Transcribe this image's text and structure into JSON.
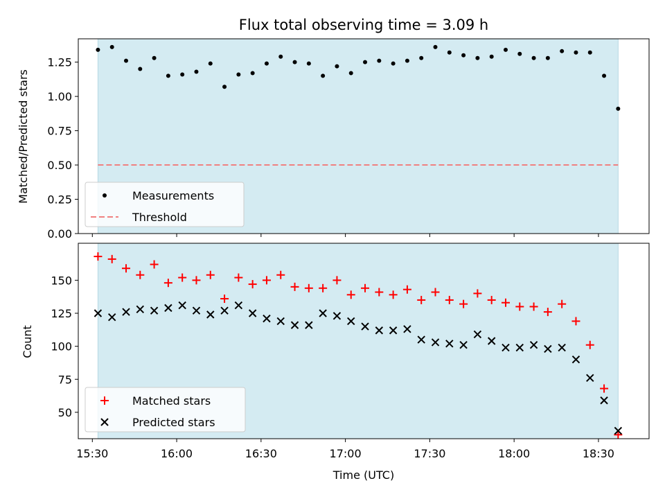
{
  "chart_data": [
    {
      "type": "scatter",
      "title": "Flux total observing time = 3.09 h",
      "ylabel": "Matched/Predicted stars",
      "xlabel": "",
      "ylim": [
        0.0,
        1.42
      ],
      "yticks": [
        "0.00",
        "0.25",
        "0.50",
        "0.75",
        "1.00",
        "1.25"
      ],
      "shaded_span": [
        "15:32",
        "18:37"
      ],
      "legend_position": "lower-left",
      "series": [
        {
          "name": "Measurements",
          "marker": "dot",
          "color": "#000000",
          "x": [
            "15:32",
            "15:37",
            "15:42",
            "15:47",
            "15:52",
            "15:57",
            "16:02",
            "16:07",
            "16:12",
            "16:17",
            "16:22",
            "16:27",
            "16:32",
            "16:37",
            "16:42",
            "16:47",
            "16:52",
            "16:57",
            "17:02",
            "17:07",
            "17:12",
            "17:17",
            "17:22",
            "17:27",
            "17:32",
            "17:37",
            "17:42",
            "17:47",
            "17:52",
            "17:57",
            "18:02",
            "18:07",
            "18:12",
            "18:17",
            "18:22",
            "18:27",
            "18:32",
            "18:37"
          ],
          "y": [
            1.34,
            1.36,
            1.26,
            1.2,
            1.28,
            1.15,
            1.16,
            1.18,
            1.24,
            1.07,
            1.16,
            1.17,
            1.24,
            1.29,
            1.25,
            1.24,
            1.15,
            1.22,
            1.17,
            1.25,
            1.26,
            1.24,
            1.26,
            1.28,
            1.36,
            1.32,
            1.3,
            1.28,
            1.29,
            1.34,
            1.31,
            1.28,
            1.28,
            1.33,
            1.32,
            1.32,
            1.15,
            0.91
          ]
        },
        {
          "name": "Threshold",
          "marker": "dashed-line",
          "color": "#f08080",
          "x": [
            "15:32",
            "18:37"
          ],
          "y": [
            0.5,
            0.5
          ]
        }
      ]
    },
    {
      "type": "scatter",
      "xlabel": "Time (UTC)",
      "ylabel": "Count",
      "ylim": [
        30,
        178
      ],
      "yticks": [
        "50",
        "75",
        "100",
        "125",
        "150"
      ],
      "xticks": [
        "15:30",
        "16:00",
        "16:30",
        "17:00",
        "17:30",
        "18:00",
        "18:30"
      ],
      "shaded_span": [
        "15:32",
        "18:37"
      ],
      "legend_position": "lower-left",
      "series": [
        {
          "name": "Matched stars",
          "marker": "plus",
          "color": "#ff0000",
          "x": [
            "15:32",
            "15:37",
            "15:42",
            "15:47",
            "15:52",
            "15:57",
            "16:02",
            "16:07",
            "16:12",
            "16:17",
            "16:22",
            "16:27",
            "16:32",
            "16:37",
            "16:42",
            "16:47",
            "16:52",
            "16:57",
            "17:02",
            "17:07",
            "17:12",
            "17:17",
            "17:22",
            "17:27",
            "17:32",
            "17:37",
            "17:42",
            "17:47",
            "17:52",
            "17:57",
            "18:02",
            "18:07",
            "18:12",
            "18:17",
            "18:22",
            "18:27",
            "18:32",
            "18:37"
          ],
          "y": [
            168,
            166,
            159,
            154,
            162,
            148,
            152,
            150,
            154,
            136,
            152,
            147,
            150,
            154,
            145,
            144,
            144,
            150,
            139,
            144,
            141,
            139,
            143,
            135,
            141,
            135,
            132,
            140,
            135,
            133,
            130,
            130,
            126,
            132,
            119,
            101,
            68,
            33
          ]
        },
        {
          "name": "Predicted stars",
          "marker": "x",
          "color": "#000000",
          "x": [
            "15:32",
            "15:37",
            "15:42",
            "15:47",
            "15:52",
            "15:57",
            "16:02",
            "16:07",
            "16:12",
            "16:17",
            "16:22",
            "16:27",
            "16:32",
            "16:37",
            "16:42",
            "16:47",
            "16:52",
            "16:57",
            "17:02",
            "17:07",
            "17:12",
            "17:17",
            "17:22",
            "17:27",
            "17:32",
            "17:37",
            "17:42",
            "17:47",
            "17:52",
            "17:57",
            "18:02",
            "18:07",
            "18:12",
            "18:17",
            "18:22",
            "18:27",
            "18:32",
            "18:37"
          ],
          "y": [
            125,
            122,
            126,
            128,
            127,
            129,
            131,
            127,
            124,
            127,
            131,
            125,
            121,
            119,
            116,
            116,
            125,
            123,
            119,
            115,
            112,
            112,
            113,
            105,
            103,
            102,
            101,
            109,
            104,
            99,
            99,
            101,
            98,
            99,
            90,
            76,
            59,
            36
          ]
        }
      ]
    }
  ],
  "colors": {
    "span": "#d4ebf2",
    "span_edge": "#b5d9e4",
    "threshold": "#f08080",
    "matched": "#ff0000",
    "predicted": "#000000"
  }
}
